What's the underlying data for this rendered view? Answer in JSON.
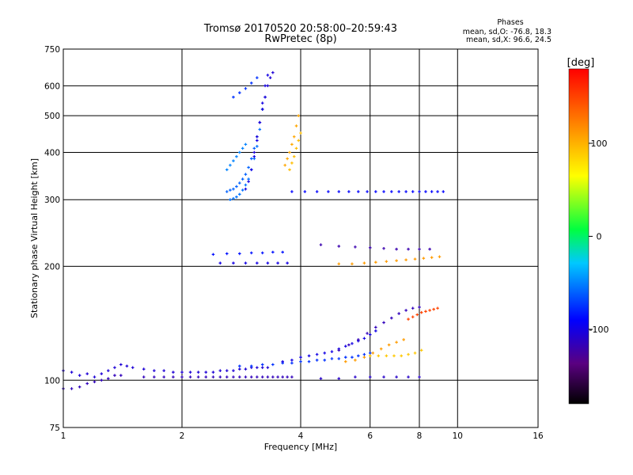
{
  "chart_data": {
    "type": "scatter",
    "title": "Tromsø 20170520 20:58:00–20:59:43",
    "subtitle": "RwPretec (8p)",
    "xlabel": "Frequency [MHz]",
    "ylabel": "Stationary phase Virtual Height [km]",
    "x_scale": "log",
    "y_scale": "log",
    "xlim": [
      1,
      16
    ],
    "ylim": [
      75,
      750
    ],
    "x_ticks": [
      1,
      2,
      4,
      6,
      8,
      10,
      16
    ],
    "x_tick_labels": [
      "1",
      "2",
      "4",
      "6",
      "8",
      "10",
      "16"
    ],
    "y_ticks": [
      75,
      100,
      200,
      300,
      400,
      500,
      600,
      750
    ],
    "y_tick_labels": [
      "75",
      "100",
      "200",
      "300",
      "400",
      "500",
      "600",
      "750"
    ],
    "grid": true,
    "stats": {
      "header": "Phases",
      "line_o": "mean, sd,O: -76.8, 18.3",
      "line_x": "mean, sd,X:  96.6, 24.5"
    },
    "colorbar": {
      "label": "[deg]",
      "range": [
        -180,
        180
      ],
      "ticks": [
        100,
        0,
        -100
      ],
      "tick_labels": [
        "100",
        "0",
        "-100"
      ],
      "colormap": "rainbow"
    },
    "traces": [
      {
        "x": [
          1.0,
          1.05,
          1.1,
          1.15,
          1.2,
          1.25,
          1.3,
          1.35,
          1.4,
          1.45,
          1.5,
          1.6,
          1.7,
          1.8,
          1.9,
          2.0,
          2.1,
          2.2,
          2.3,
          2.4,
          2.5,
          2.6,
          2.7,
          2.8,
          2.9,
          3.0,
          3.1,
          3.2,
          3.3
        ],
        "y": [
          106,
          105,
          103,
          104,
          102,
          104,
          106,
          108,
          110,
          109,
          108,
          107,
          106,
          106,
          105,
          105,
          105,
          105,
          105,
          105,
          106,
          106,
          106,
          107,
          107,
          108,
          108,
          108,
          108
        ],
        "phase": -105
      },
      {
        "x": [
          1.0,
          1.05,
          1.1,
          1.15,
          1.2,
          1.25,
          1.3,
          1.35,
          1.4
        ],
        "y": [
          95,
          95,
          96,
          98,
          99,
          100,
          101,
          103,
          103
        ],
        "phase": -115
      },
      {
        "x": [
          1.6,
          1.7,
          1.8,
          1.9,
          2.0,
          2.1,
          2.2,
          2.3,
          2.4,
          2.5,
          2.6,
          2.7,
          2.8,
          2.9,
          3.0,
          3.1,
          3.2,
          3.3,
          3.4,
          3.5,
          3.6,
          3.7,
          3.8
        ],
        "y": [
          102,
          102,
          102,
          102,
          102,
          102,
          102,
          102,
          102,
          102,
          102,
          102,
          102,
          102,
          102,
          102,
          102,
          102,
          102,
          102,
          102,
          102,
          102
        ],
        "phase": -115
      },
      {
        "x": [
          2.8,
          3.0,
          3.2,
          3.4,
          3.6,
          3.8,
          4.0,
          4.2,
          4.4,
          4.6,
          4.8,
          5.0,
          5.2,
          5.4,
          5.6,
          5.8,
          6.0
        ],
        "y": [
          109,
          109,
          110,
          110,
          111,
          111,
          112,
          112,
          113,
          113,
          114,
          114,
          115,
          115,
          116,
          117,
          118
        ],
        "phase": -75
      },
      {
        "x": [
          3.6,
          3.8,
          4.0,
          4.2,
          4.4,
          4.6,
          4.8,
          5.0,
          5.2,
          5.4,
          5.6,
          5.8,
          6.0,
          6.2
        ],
        "y": [
          112,
          113,
          115,
          116,
          117,
          118,
          119,
          121,
          123,
          125,
          127,
          129,
          132,
          135
        ],
        "phase": -100
      },
      {
        "x": [
          5.0,
          5.3,
          5.6,
          5.9,
          6.2,
          6.5,
          6.8,
          7.1,
          7.4,
          7.7,
          8.0
        ],
        "y": [
          120,
          124,
          128,
          133,
          138,
          142,
          146,
          150,
          153,
          155,
          156
        ],
        "phase": -115
      },
      {
        "x": [
          5.2,
          5.5,
          5.8,
          6.1,
          6.4,
          6.7,
          7.0,
          7.3
        ],
        "y": [
          112,
          113,
          115,
          118,
          121,
          124,
          126,
          128
        ],
        "phase": 110
      },
      {
        "x": [
          6.0,
          6.3,
          6.6,
          6.9,
          7.2,
          7.5,
          7.8,
          8.1
        ],
        "y": [
          116,
          116,
          116,
          116,
          116,
          117,
          118,
          120
        ],
        "phase": 90
      },
      {
        "x": [
          4.5,
          5.0,
          5.5,
          6.0,
          6.5,
          7.0,
          7.5,
          8.0
        ],
        "y": [
          101,
          101,
          102,
          102,
          102,
          102,
          102,
          102
        ],
        "phase": -110
      },
      {
        "x": [
          2.6,
          2.65,
          2.7,
          2.75,
          2.8,
          2.85,
          2.9,
          2.95,
          3.0,
          3.05,
          3.1,
          3.15,
          3.2,
          3.25
        ],
        "y": [
          315,
          318,
          320,
          325,
          332,
          340,
          350,
          365,
          385,
          410,
          440,
          480,
          520,
          560
        ],
        "phase": -60
      },
      {
        "x": [
          2.65,
          2.7,
          2.75,
          2.8,
          2.85,
          2.9,
          2.95,
          3.0,
          3.05,
          3.1,
          3.15,
          3.2
        ],
        "y": [
          300,
          302,
          305,
          310,
          318,
          328,
          340,
          360,
          385,
          415,
          460,
          520
        ],
        "phase": -55
      },
      {
        "x": [
          2.6,
          2.65,
          2.7,
          2.75,
          2.8,
          2.85,
          2.9
        ],
        "y": [
          360,
          370,
          380,
          390,
          400,
          410,
          420
        ],
        "phase": -50
      },
      {
        "x": [
          2.9,
          2.95,
          3.0,
          3.05,
          3.1,
          3.15,
          3.2,
          3.25,
          3.3
        ],
        "y": [
          320,
          335,
          360,
          390,
          430,
          480,
          540,
          600,
          640
        ],
        "phase": -100
      },
      {
        "x": [
          3.05,
          3.1,
          3.15,
          3.2,
          3.25,
          3.3,
          3.35,
          3.4
        ],
        "y": [
          400,
          440,
          480,
          520,
          560,
          600,
          630,
          650
        ],
        "phase": -105
      },
      {
        "x": [
          2.7,
          2.8,
          2.9,
          3.0,
          3.1
        ],
        "y": [
          560,
          575,
          590,
          610,
          630
        ],
        "phase": -75
      },
      {
        "x": [
          3.65,
          3.7,
          3.75,
          3.8,
          3.85,
          3.9,
          3.95
        ],
        "y": [
          370,
          385,
          400,
          420,
          440,
          470,
          500
        ],
        "phase": 105
      },
      {
        "x": [
          3.75,
          3.8,
          3.85,
          3.9,
          3.95,
          4.0
        ],
        "y": [
          360,
          375,
          390,
          410,
          430,
          450
        ],
        "phase": 95
      },
      {
        "x": [
          2.4,
          2.6,
          2.8,
          3.0,
          3.2,
          3.4,
          3.6
        ],
        "y": [
          215,
          216,
          216,
          217,
          217,
          218,
          218
        ],
        "phase": -85
      },
      {
        "x": [
          2.5,
          2.7,
          2.9,
          3.1,
          3.3,
          3.5,
          3.7
        ],
        "y": [
          204,
          204,
          204,
          204,
          204,
          204,
          204
        ],
        "phase": -100
      },
      {
        "x": [
          3.8,
          4.1,
          4.4,
          4.7,
          5.0,
          5.3,
          5.6,
          5.9,
          6.2,
          6.5,
          6.8,
          7.1,
          7.4,
          7.7,
          8.0,
          8.3,
          8.6,
          8.9,
          9.2
        ],
        "y": [
          315,
          315,
          315,
          315,
          315,
          315,
          315,
          315,
          315,
          315,
          315,
          315,
          315,
          315,
          315,
          315,
          315,
          315,
          315
        ],
        "phase": -90
      },
      {
        "x": [
          5.0,
          5.4,
          5.8,
          6.2,
          6.6,
          7.0,
          7.4,
          7.8,
          8.2,
          8.6,
          9.0
        ],
        "y": [
          203,
          203,
          204,
          205,
          206,
          207,
          208,
          209,
          210,
          211,
          212
        ],
        "phase": 110
      },
      {
        "x": [
          4.5,
          5.0,
          5.5,
          6.0,
          6.5,
          7.0,
          7.5,
          8.0,
          8.5
        ],
        "y": [
          228,
          226,
          225,
          224,
          223,
          222,
          222,
          222,
          222
        ],
        "phase": -120
      },
      {
        "x": [
          7.5,
          7.7,
          7.9,
          8.1,
          8.3,
          8.5,
          8.7,
          8.9
        ],
        "y": [
          145,
          147,
          149,
          151,
          152,
          153,
          154,
          155
        ],
        "phase": 150
      }
    ]
  }
}
